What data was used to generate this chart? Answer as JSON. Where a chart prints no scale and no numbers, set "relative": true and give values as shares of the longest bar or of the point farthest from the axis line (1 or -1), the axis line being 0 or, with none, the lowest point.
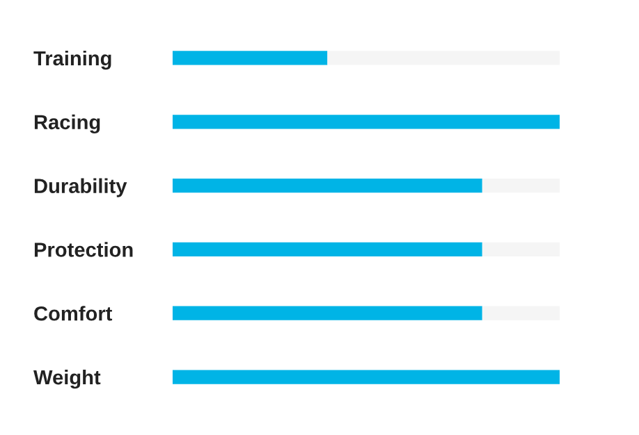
{
  "chart_data": {
    "type": "bar",
    "orientation": "horizontal",
    "stacked": true,
    "relative": true,
    "grid": false,
    "legend": false,
    "categories": [
      "Training",
      "Racing",
      "Durability",
      "Protection",
      "Comfort",
      "Weight"
    ],
    "series": [
      {
        "color": "#00b4e6",
        "values": [
          0.4,
          1,
          0.8,
          0.8,
          0.8,
          1
        ]
      },
      {
        "color": "#f5f5f5",
        "values": [
          0.6,
          0,
          0.2,
          0.2,
          0.2,
          0
        ]
      }
    ]
  }
}
